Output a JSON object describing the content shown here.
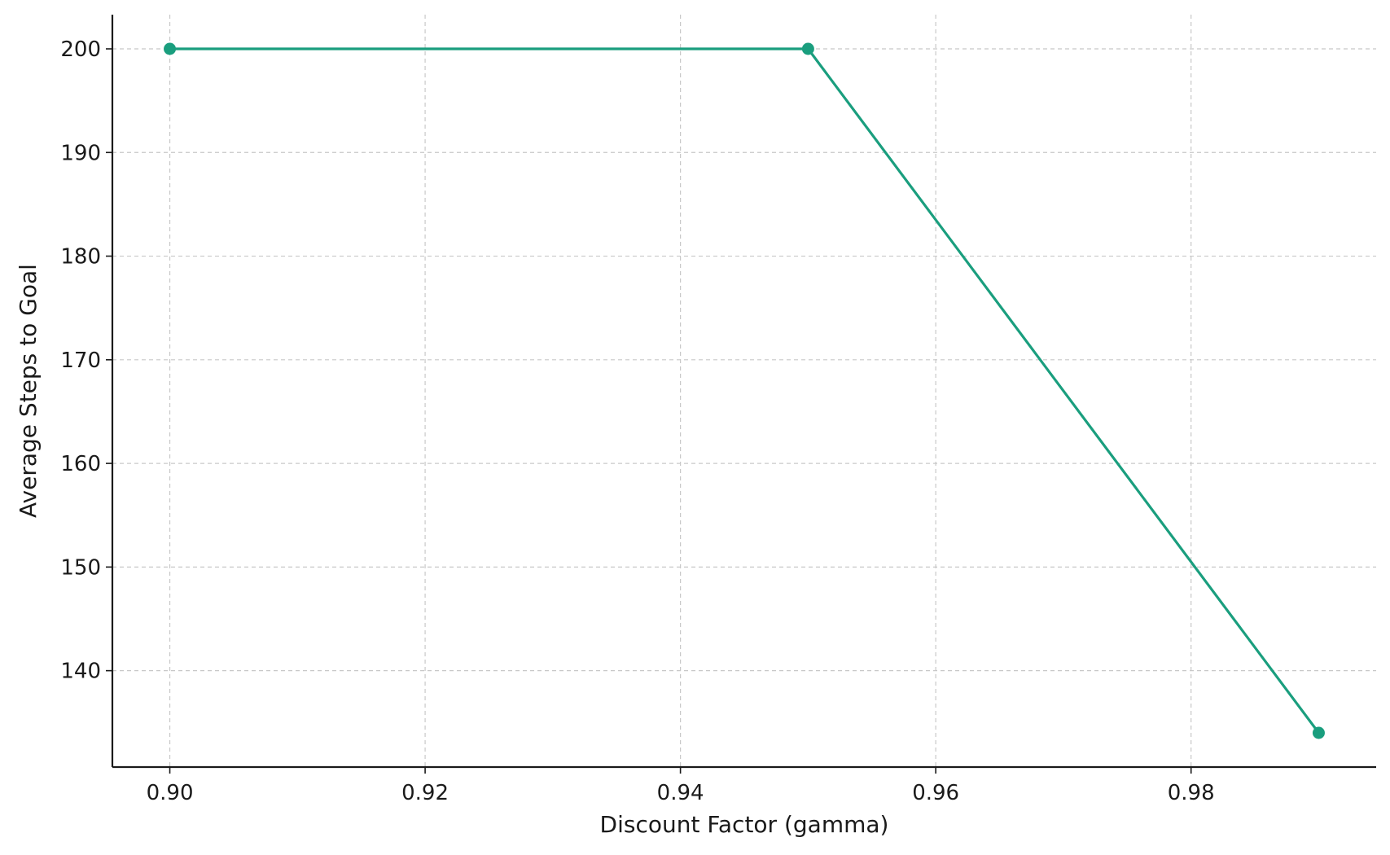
{
  "chart_data": {
    "type": "line",
    "title": "",
    "xlabel": "Discount Factor (gamma)",
    "ylabel": "Average Steps to Goal",
    "x": [
      0.9,
      0.95,
      0.99
    ],
    "series": [
      {
        "values": [
          200,
          200,
          134
        ],
        "color": "#1a9e7e"
      }
    ],
    "xlim": [
      0.8955,
      0.9945
    ],
    "ylim": [
      130.7,
      203.3
    ],
    "xticks": [
      0.9,
      0.92,
      0.94,
      0.96,
      0.98
    ],
    "xtick_labels": [
      "0.90",
      "0.92",
      "0.94",
      "0.96",
      "0.98"
    ],
    "yticks": [
      140,
      150,
      160,
      170,
      180,
      190,
      200
    ],
    "ytick_labels": [
      "140",
      "150",
      "160",
      "170",
      "180",
      "190",
      "200"
    ],
    "grid": true,
    "marker": "circle"
  }
}
